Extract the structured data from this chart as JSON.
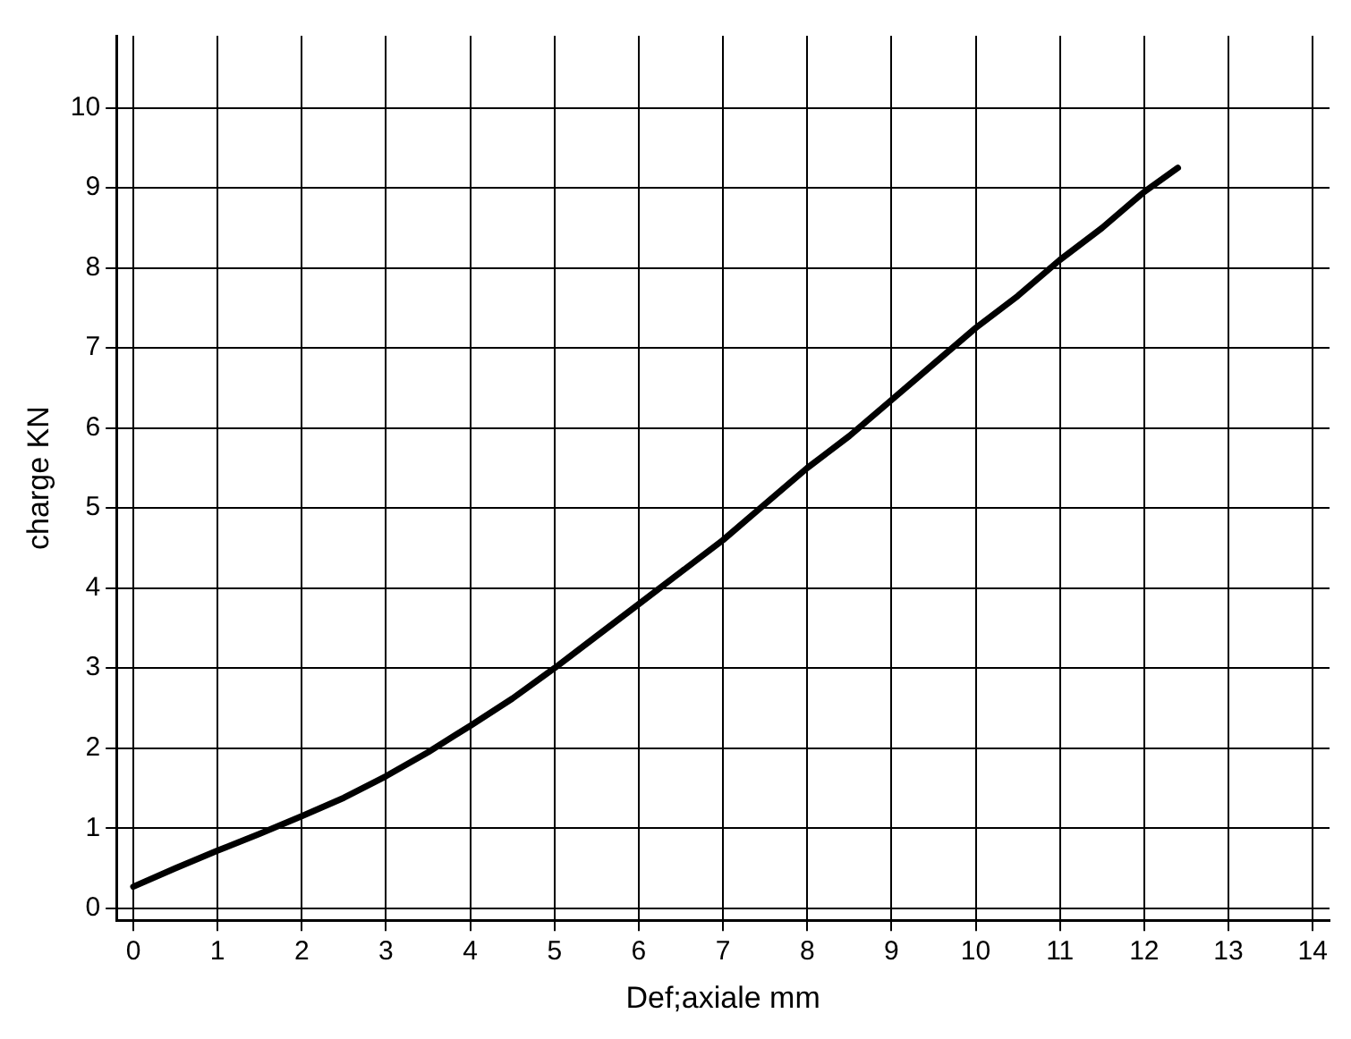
{
  "chart_data": {
    "type": "line",
    "xlabel": "Def;axiale mm",
    "ylabel": "charge KN",
    "x": [
      0,
      0.5,
      1,
      1.5,
      2,
      2.5,
      3,
      3.5,
      4,
      4.5,
      5,
      5.5,
      6,
      6.5,
      7,
      7.5,
      8,
      8.5,
      9,
      9.5,
      10,
      10.5,
      11,
      11.5,
      12,
      12.4
    ],
    "series": [
      {
        "color": "#000000",
        "values": [
          0.27,
          0.5,
          0.72,
          0.93,
          1.15,
          1.38,
          1.65,
          1.95,
          2.28,
          2.62,
          3.0,
          3.4,
          3.8,
          4.2,
          4.6,
          5.05,
          5.5,
          5.9,
          6.35,
          6.8,
          7.25,
          7.65,
          8.1,
          8.5,
          8.95,
          9.25
        ]
      }
    ],
    "xlim": [
      -0.2,
      14.2
    ],
    "ylim": [
      -0.15,
      10.9
    ],
    "xticks": [
      0,
      1,
      2,
      3,
      4,
      5,
      6,
      7,
      8,
      9,
      10,
      11,
      12,
      13,
      14
    ],
    "yticks": [
      0,
      1,
      2,
      3,
      4,
      5,
      6,
      7,
      8,
      9,
      10
    ],
    "grid": true,
    "legend": false,
    "marker": "none",
    "line_style": "solid"
  }
}
